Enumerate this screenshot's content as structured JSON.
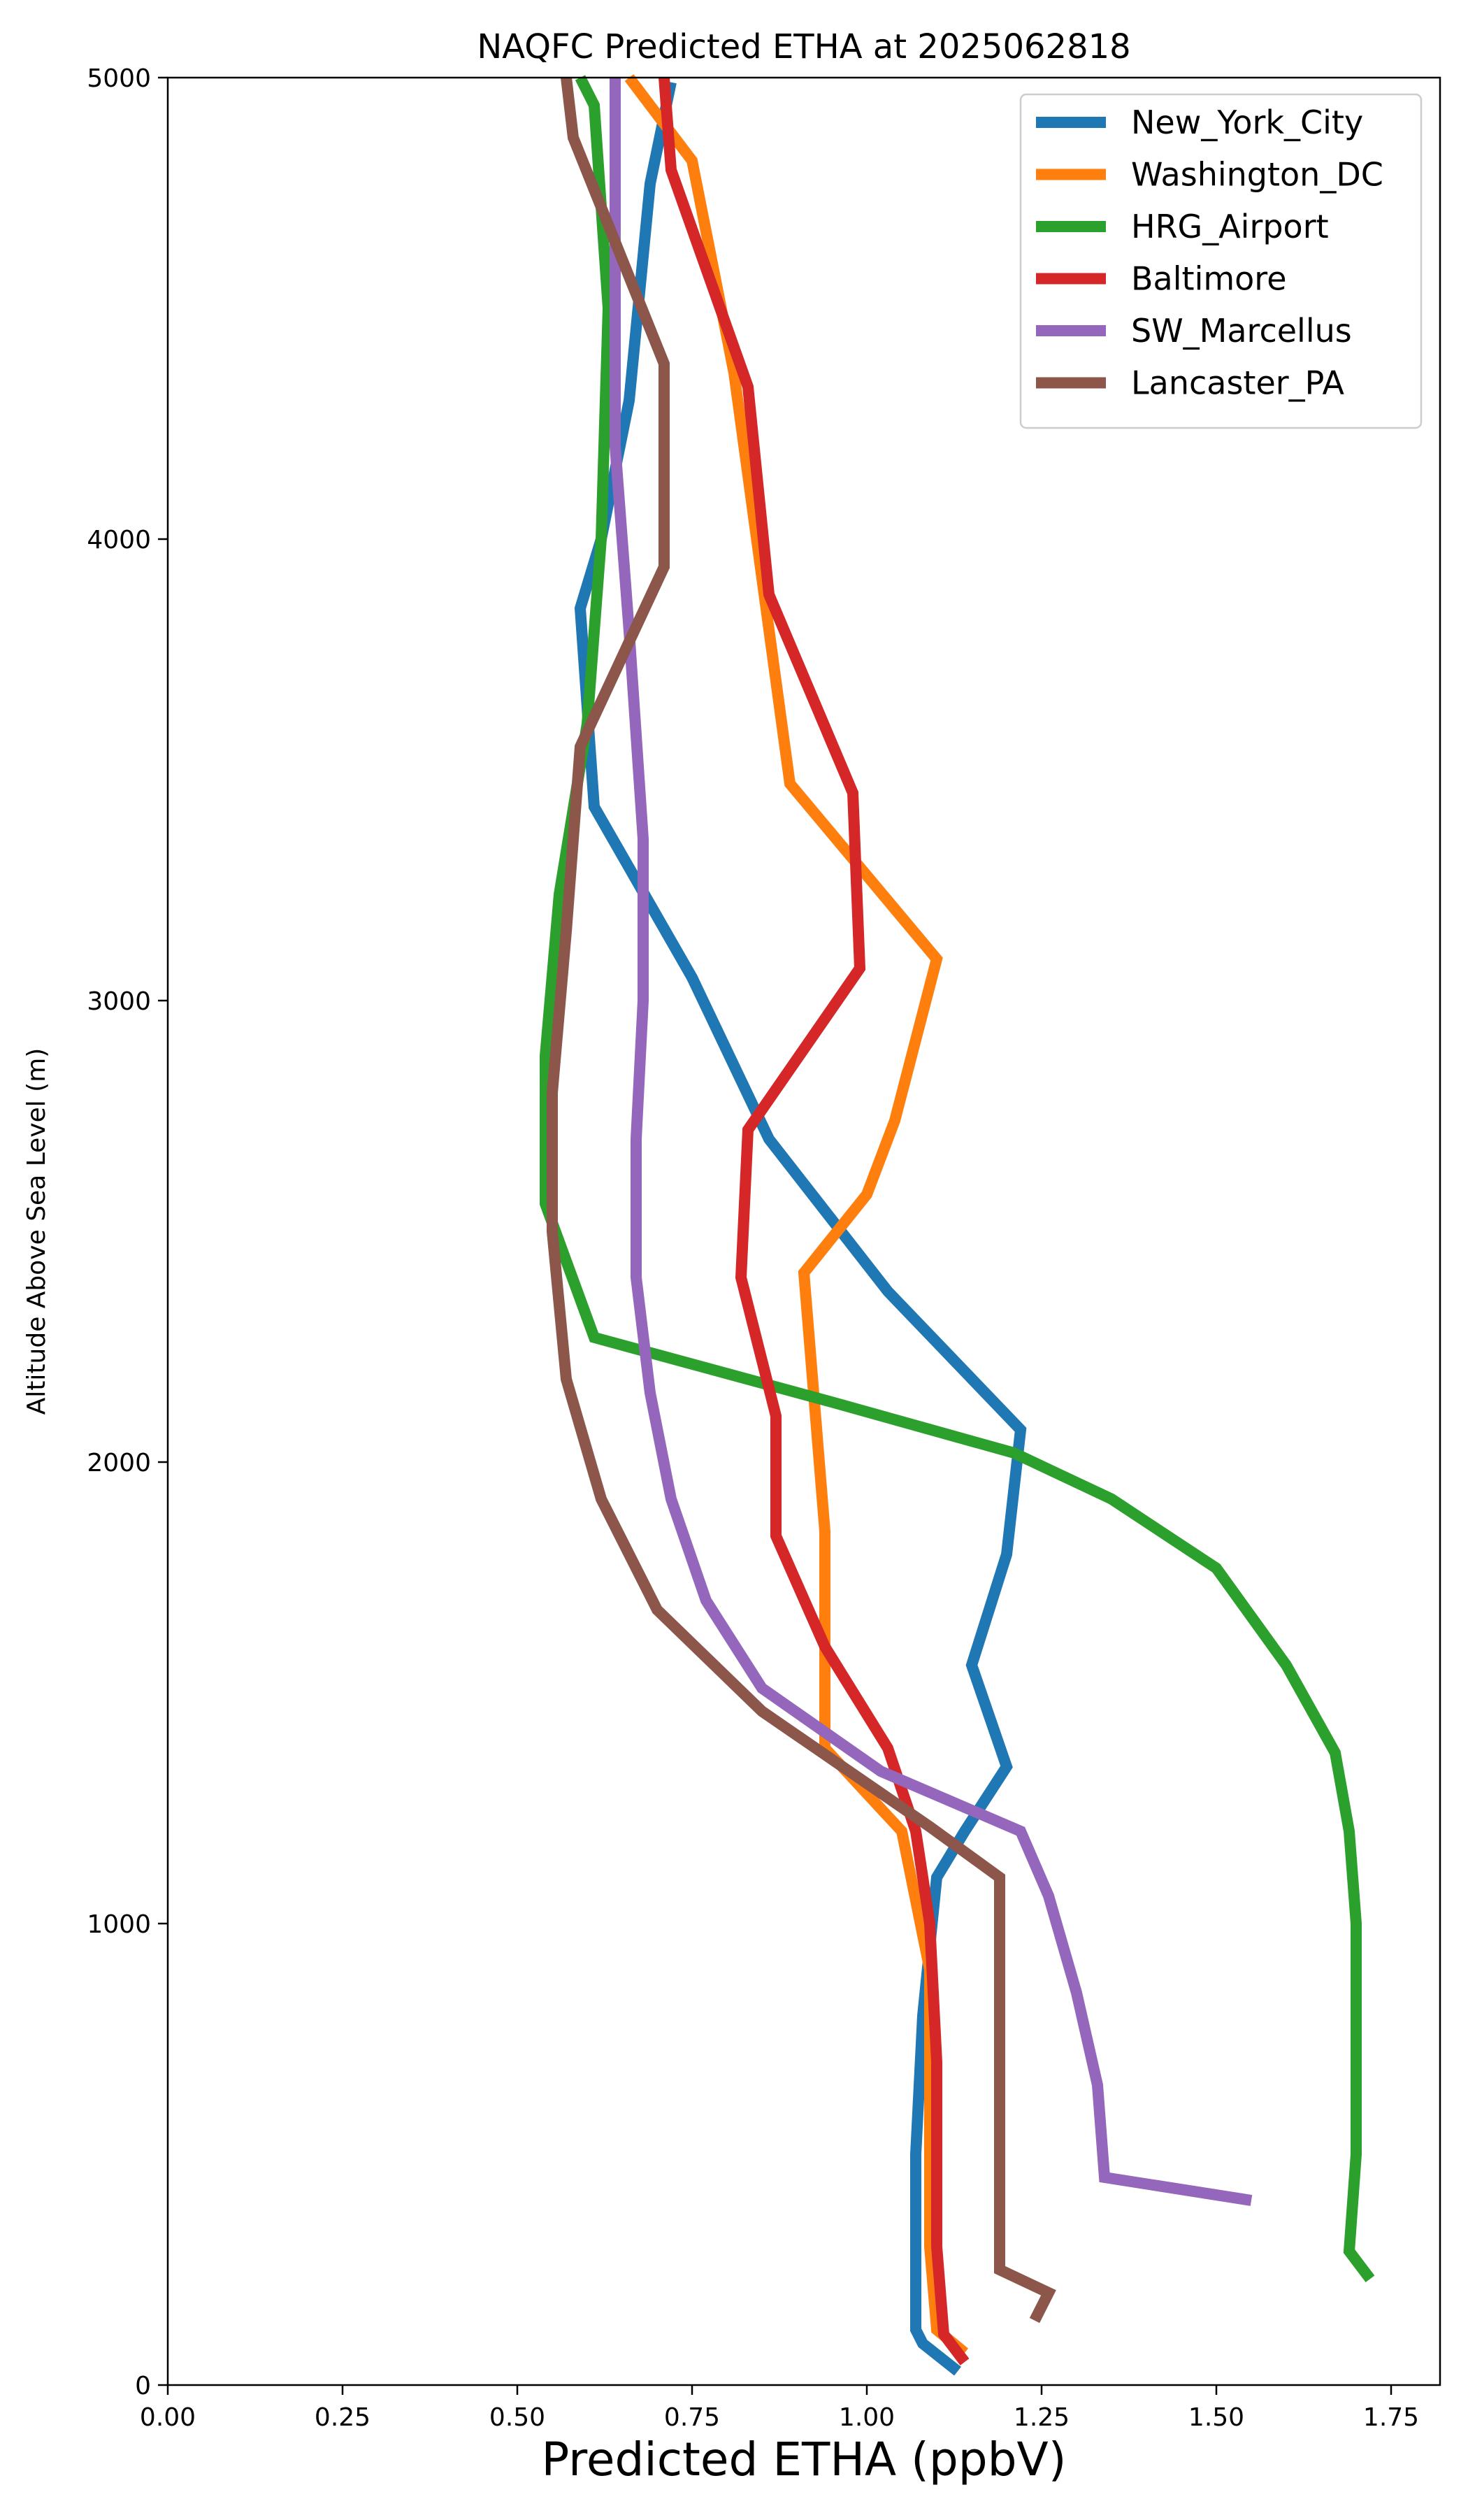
{
  "chart_data": {
    "type": "line",
    "title": "NAQFC Predicted ETHA at 2025062818",
    "xlabel": "Predicted ETHA (ppbV)",
    "ylabel": "Altitude Above Sea Level (m)",
    "xlim": [
      0.0,
      1.82
    ],
    "ylim": [
      0,
      5000
    ],
    "xticks": [
      0.0,
      0.25,
      0.5,
      0.75,
      1.0,
      1.25,
      1.5,
      1.75
    ],
    "xtick_labels": [
      "0.00",
      "0.25",
      "0.50",
      "0.75",
      "1.00",
      "1.25",
      "1.50",
      "1.75"
    ],
    "yticks": [
      0,
      1000,
      2000,
      3000,
      4000,
      5000
    ],
    "ytick_labels": [
      "0",
      "1000",
      "2000",
      "3000",
      "4000",
      "5000"
    ],
    "grid": false,
    "legend_position": "top-right",
    "series": [
      {
        "name": "New_York_City",
        "color": "#1f77b4",
        "points": [
          [
            1.13,
            30
          ],
          [
            1.08,
            90
          ],
          [
            1.07,
            120
          ],
          [
            1.07,
            200
          ],
          [
            1.07,
            300
          ],
          [
            1.07,
            500
          ],
          [
            1.08,
            800
          ],
          [
            1.1,
            1100
          ],
          [
            1.14,
            1200
          ],
          [
            1.2,
            1340
          ],
          [
            1.15,
            1560
          ],
          [
            1.2,
            1800
          ],
          [
            1.22,
            2070
          ],
          [
            1.03,
            2370
          ],
          [
            0.86,
            2700
          ],
          [
            0.75,
            3050
          ],
          [
            0.61,
            3420
          ],
          [
            0.59,
            3850
          ],
          [
            0.62,
            4000
          ],
          [
            0.66,
            4300
          ],
          [
            0.69,
            4770
          ],
          [
            0.72,
            4990
          ]
        ]
      },
      {
        "name": "Washington_DC",
        "color": "#ff7f0e",
        "points": [
          [
            1.14,
            70
          ],
          [
            1.1,
            120
          ],
          [
            1.09,
            300
          ],
          [
            1.09,
            900
          ],
          [
            1.05,
            1200
          ],
          [
            0.94,
            1380
          ],
          [
            0.94,
            1600
          ],
          [
            0.94,
            1850
          ],
          [
            0.91,
            2410
          ],
          [
            1.0,
            2580
          ],
          [
            1.04,
            2740
          ],
          [
            1.1,
            3090
          ],
          [
            0.89,
            3470
          ],
          [
            0.81,
            4360
          ],
          [
            0.75,
            4820
          ],
          [
            0.66,
            5000
          ]
        ]
      },
      {
        "name": "HRG_Airport",
        "color": "#2ca02c",
        "points": [
          [
            1.72,
            230
          ],
          [
            1.69,
            290
          ],
          [
            1.7,
            500
          ],
          [
            1.7,
            1000
          ],
          [
            1.69,
            1200
          ],
          [
            1.67,
            1370
          ],
          [
            1.6,
            1560
          ],
          [
            1.5,
            1770
          ],
          [
            1.35,
            1920
          ],
          [
            1.21,
            2020
          ],
          [
            0.95,
            2130
          ],
          [
            0.61,
            2270
          ],
          [
            0.54,
            2560
          ],
          [
            0.54,
            2880
          ],
          [
            0.56,
            3230
          ],
          [
            0.6,
            3600
          ],
          [
            0.62,
            4000
          ],
          [
            0.63,
            4500
          ],
          [
            0.61,
            4940
          ],
          [
            0.59,
            5000
          ]
        ]
      },
      {
        "name": "Baltimore",
        "color": "#d62728",
        "points": [
          [
            1.14,
            50
          ],
          [
            1.11,
            110
          ],
          [
            1.1,
            300
          ],
          [
            1.1,
            700
          ],
          [
            1.09,
            1000
          ],
          [
            1.07,
            1200
          ],
          [
            1.03,
            1380
          ],
          [
            0.94,
            1600
          ],
          [
            0.87,
            1840
          ],
          [
            0.87,
            2100
          ],
          [
            0.82,
            2400
          ],
          [
            0.83,
            2720
          ],
          [
            0.99,
            3070
          ],
          [
            0.98,
            3450
          ],
          [
            0.86,
            3880
          ],
          [
            0.83,
            4330
          ],
          [
            0.72,
            4800
          ],
          [
            0.71,
            5000
          ]
        ]
      },
      {
        "name": "SW_Marcellus",
        "color": "#9467bd",
        "points": [
          [
            1.55,
            400
          ],
          [
            1.34,
            450
          ],
          [
            1.33,
            650
          ],
          [
            1.3,
            850
          ],
          [
            1.26,
            1060
          ],
          [
            1.22,
            1200
          ],
          [
            1.02,
            1330
          ],
          [
            0.85,
            1510
          ],
          [
            0.77,
            1700
          ],
          [
            0.72,
            1920
          ],
          [
            0.69,
            2150
          ],
          [
            0.67,
            2400
          ],
          [
            0.67,
            2700
          ],
          [
            0.68,
            3000
          ],
          [
            0.68,
            3350
          ],
          [
            0.66,
            3800
          ],
          [
            0.64,
            4200
          ],
          [
            0.64,
            5000
          ]
        ]
      },
      {
        "name": "Lancaster_PA",
        "color": "#8c564b",
        "points": [
          [
            1.24,
            140
          ],
          [
            1.26,
            200
          ],
          [
            1.19,
            250
          ],
          [
            1.19,
            500
          ],
          [
            1.19,
            800
          ],
          [
            1.19,
            1100
          ],
          [
            1.09,
            1210
          ],
          [
            0.85,
            1460
          ],
          [
            0.7,
            1680
          ],
          [
            0.62,
            1920
          ],
          [
            0.57,
            2180
          ],
          [
            0.55,
            2500
          ],
          [
            0.55,
            2800
          ],
          [
            0.57,
            3150
          ],
          [
            0.59,
            3550
          ],
          [
            0.71,
            3940
          ],
          [
            0.71,
            4380
          ],
          [
            0.58,
            4870
          ],
          [
            0.57,
            5000
          ]
        ]
      }
    ]
  }
}
